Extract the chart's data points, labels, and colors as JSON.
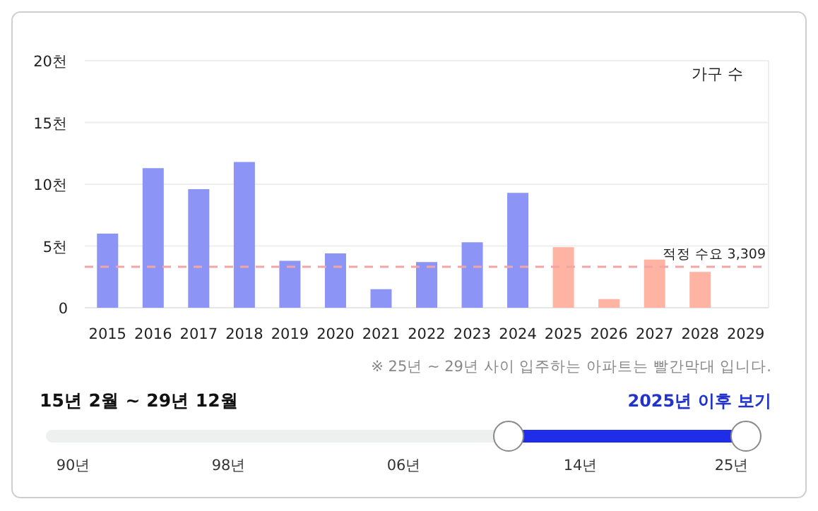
{
  "chart_data": {
    "type": "bar",
    "categories": [
      "2015",
      "2016",
      "2017",
      "2018",
      "2019",
      "2020",
      "2021",
      "2022",
      "2023",
      "2024",
      "2025",
      "2026",
      "2027",
      "2028",
      "2029"
    ],
    "values": [
      6.0,
      11.3,
      9.6,
      11.8,
      3.8,
      4.4,
      1.5,
      3.7,
      5.3,
      9.3,
      4.9,
      0.7,
      3.9,
      2.9,
      0
    ],
    "colors": [
      "#8c95f5",
      "#8c95f5",
      "#8c95f5",
      "#8c95f5",
      "#8c95f5",
      "#8c95f5",
      "#8c95f5",
      "#8c95f5",
      "#8c95f5",
      "#8c95f5",
      "#ffb3a3",
      "#ffb3a3",
      "#ffb3a3",
      "#ffb3a3",
      "#ffb3a3"
    ],
    "ylim": [
      0,
      20
    ],
    "yticks": [
      0,
      {
        "value": 5,
        "label": "5천"
      },
      {
        "value": 10,
        "label": "10천"
      },
      {
        "value": 15,
        "label": "15천"
      },
      {
        "value": 20,
        "label": "20천"
      }
    ],
    "grid": "y",
    "ref_lines": [
      {
        "axis": "y",
        "value": 3.309,
        "label": "적정 수요 3,309",
        "color": "#f2a5a5",
        "line_style": "dashed"
      }
    ],
    "annotations": [
      "가구 수",
      "※ 25년 ~ 29년 사이 입주하는 아파트는 빨간막대 입니다.",
      "15년 2월 ~ 29년 12월",
      "2025년 이후 보기",
      "90년",
      "98년",
      "06년",
      "14년",
      "25년"
    ]
  }
}
